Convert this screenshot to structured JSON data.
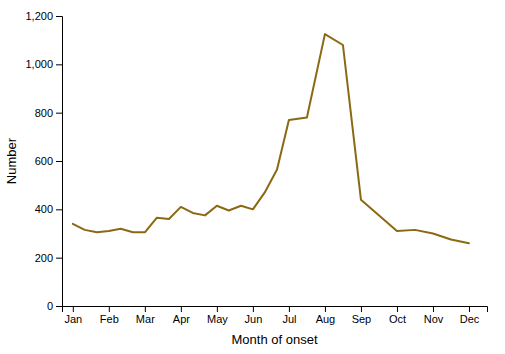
{
  "chart_data": {
    "type": "line",
    "xlabel": "Month of onset",
    "ylabel": "Number",
    "x": [
      0,
      0.33,
      0.67,
      1.0,
      1.33,
      1.67,
      2.0,
      2.33,
      2.67,
      3.0,
      3.33,
      3.67,
      4.0,
      4.33,
      4.67,
      5.0,
      5.33,
      5.67,
      6.0,
      6.5,
      7.0,
      7.5,
      8.0,
      9.0,
      9.5,
      10.0,
      10.5,
      11.0
    ],
    "values": [
      340,
      315,
      305,
      310,
      320,
      305,
      305,
      365,
      360,
      410,
      385,
      375,
      415,
      395,
      415,
      400,
      470,
      565,
      770,
      780,
      1125,
      1080,
      440,
      310,
      315,
      300,
      275,
      260
    ],
    "color": "#8B6914",
    "xlim": [
      -0.3,
      11.5
    ],
    "xticks": [
      {
        "value": 0,
        "label": "Jan"
      },
      {
        "value": 1,
        "label": "Feb"
      },
      {
        "value": 2,
        "label": "Mar"
      },
      {
        "value": 3,
        "label": "Apr"
      },
      {
        "value": 4,
        "label": "May"
      },
      {
        "value": 5,
        "label": "Jun"
      },
      {
        "value": 6,
        "label": "Jul"
      },
      {
        "value": 7,
        "label": "Aug"
      },
      {
        "value": 8,
        "label": "Sep"
      },
      {
        "value": 9,
        "label": "Oct"
      },
      {
        "value": 10,
        "label": "Nov"
      },
      {
        "value": 11,
        "label": "Dec"
      }
    ],
    "ylim": [
      0,
      1200
    ],
    "yticks": [
      0,
      200,
      400,
      600,
      800,
      {
        "value": 1000,
        "label": "1,000"
      },
      {
        "value": 1200,
        "label": "1,200"
      }
    ],
    "grid": false
  }
}
